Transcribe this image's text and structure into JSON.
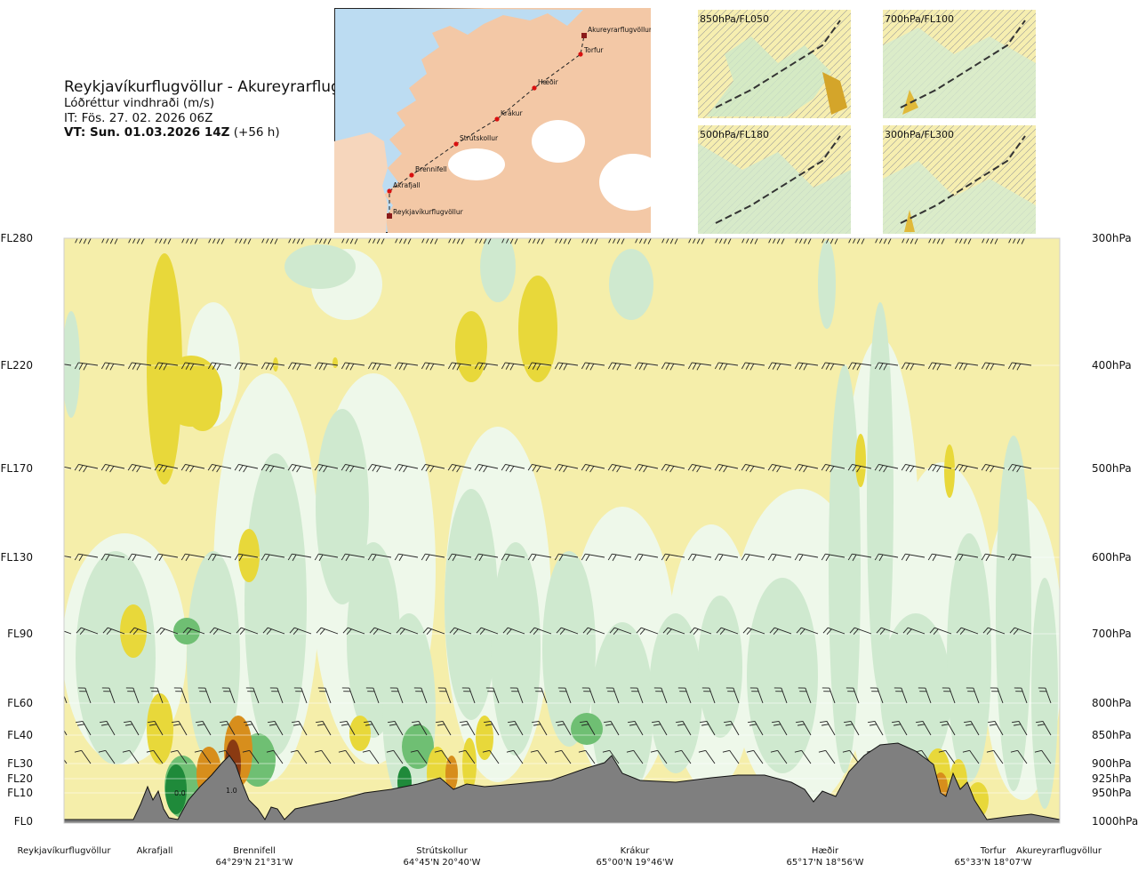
{
  "header": {
    "title": "Reykjavíkurflugvöllur - Akureyrarflugvöllur",
    "subtitle": "Lóðréttur vindhraði (m/s)",
    "issue_time": "IT: Fös. 27. 02. 2026 06Z",
    "valid_time_bold": "VT: Sun. 01.03.2026 14Z",
    "valid_time_offset": " (+56 h)"
  },
  "map": {
    "waypoints": [
      "Akureyrarflugvöllur",
      "Torfur",
      "Hæðir",
      "Krákur",
      "Strútskollur",
      "Brennifell",
      "Akrafjall",
      "Reykjavíkurflugvöllur"
    ],
    "colors": {
      "sea": "#bcdcf2",
      "land": "#f3c8a6",
      "ice": "#ffffff",
      "route": "#222222",
      "point": "#d81010"
    }
  },
  "levels_maps": [
    {
      "label": "850hPa/FL050"
    },
    {
      "label": "700hPa/FL100"
    },
    {
      "label": "500hPa/FL180"
    },
    {
      "label": "300hPa/FL300"
    }
  ],
  "chart_data": {
    "type": "heatmap",
    "title": "Lóðréttur vindhraði (m/s)",
    "y_left_ticks": [
      "FL280",
      "FL220",
      "FL170",
      "FL130",
      "FL90",
      "FL60",
      "FL40",
      "FL30",
      "FL20",
      "FL10",
      "FL0"
    ],
    "y_right_ticks": [
      "300hPa",
      "400hPa",
      "500hPa",
      "600hPa",
      "700hPa",
      "800hPa",
      "850hPa",
      "900hPa",
      "925hPa",
      "950hPa",
      "1000hPa"
    ],
    "pressure_levels_hpa": [
      300,
      400,
      500,
      600,
      700,
      800,
      850,
      900,
      925,
      950,
      1000
    ],
    "x_axis_points": [
      {
        "name": "Reykjavíkurflugvöllur",
        "coord": ""
      },
      {
        "name": "Akrafjall",
        "coord": ""
      },
      {
        "name": "Brennifell",
        "coord": "64°29'N 21°31'W"
      },
      {
        "name": "Strútskollur",
        "coord": "64°45'N 20°40'W"
      },
      {
        "name": "Krákur",
        "coord": "65°00'N 19°46'W"
      },
      {
        "name": "Hæðir",
        "coord": "65°17'N 18°56'W"
      },
      {
        "name": "Torfur",
        "coord": "65°33'N 18°07'W"
      },
      {
        "name": "Akureyrarflugvöllur",
        "coord": ""
      }
    ],
    "contour_labels": [
      "0.0",
      "1.0"
    ],
    "colors": {
      "strong_sink": "#1f8a3a",
      "sink": "#6fbf73",
      "weak_sink": "#cfe9cf",
      "near_zero_down": "#eef8ea",
      "near_zero_up": "#fbf9d8",
      "weak_rise": "#f5eeaa",
      "rise": "#e8d83a",
      "strong_rise": "#d78e1c",
      "very_strong_rise": "#8a3a12",
      "terrain": "#7f7f7f"
    }
  }
}
